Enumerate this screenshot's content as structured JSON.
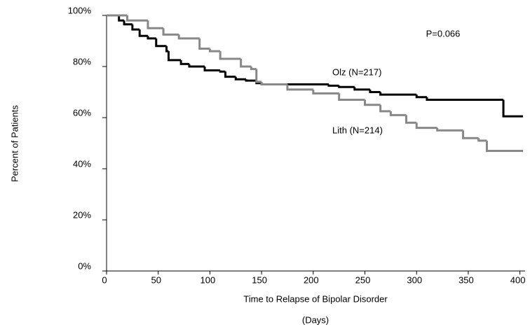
{
  "chart_data": {
    "type": "step",
    "annotation": "P=0.066",
    "xlabel": [
      "Time to Relapse of Bipolar Disorder",
      "(Days)"
    ],
    "ylabel": "Percent of Patients",
    "xlim": [
      0,
      405
    ],
    "ylim": [
      0,
      100
    ],
    "xticks": [
      0,
      50,
      100,
      150,
      200,
      250,
      300,
      350,
      400
    ],
    "yticks": [
      {
        "value": 0,
        "label": "0%"
      },
      {
        "value": 20,
        "label": "20%"
      },
      {
        "value": 40,
        "label": "40%"
      },
      {
        "value": 60,
        "label": "60%"
      },
      {
        "value": 80,
        "label": "80%"
      },
      {
        "value": 100,
        "label": "100%"
      }
    ],
    "series": [
      {
        "name": "Olz (N=217)",
        "color": "#000000",
        "x": [
          0,
          12,
          17,
          25,
          32,
          40,
          48,
          58,
          60,
          72,
          80,
          95,
          110,
          115,
          125,
          135,
          145,
          150,
          215,
          225,
          240,
          255,
          265,
          300,
          310,
          384,
          403
        ],
        "values": [
          100,
          98,
          96.5,
          94.5,
          92,
          91,
          88,
          86,
          82.5,
          81,
          80,
          78.5,
          78,
          76,
          75,
          74.5,
          73.5,
          73,
          72.5,
          72,
          71,
          70,
          69,
          68,
          67,
          60.5,
          60.5
        ]
      },
      {
        "name": "Lith (N=214)",
        "color": "#888888",
        "x": [
          0,
          20,
          40,
          55,
          70,
          90,
          100,
          110,
          130,
          140,
          145,
          150,
          175,
          200,
          225,
          250,
          265,
          275,
          290,
          300,
          320,
          345,
          360,
          368,
          403
        ],
        "values": [
          100,
          98,
          95,
          92.5,
          91,
          87,
          86,
          83,
          80,
          79,
          74,
          73,
          71,
          69.5,
          67,
          65,
          62.5,
          61,
          58,
          56,
          55,
          52,
          51,
          47,
          47
        ]
      }
    ]
  }
}
